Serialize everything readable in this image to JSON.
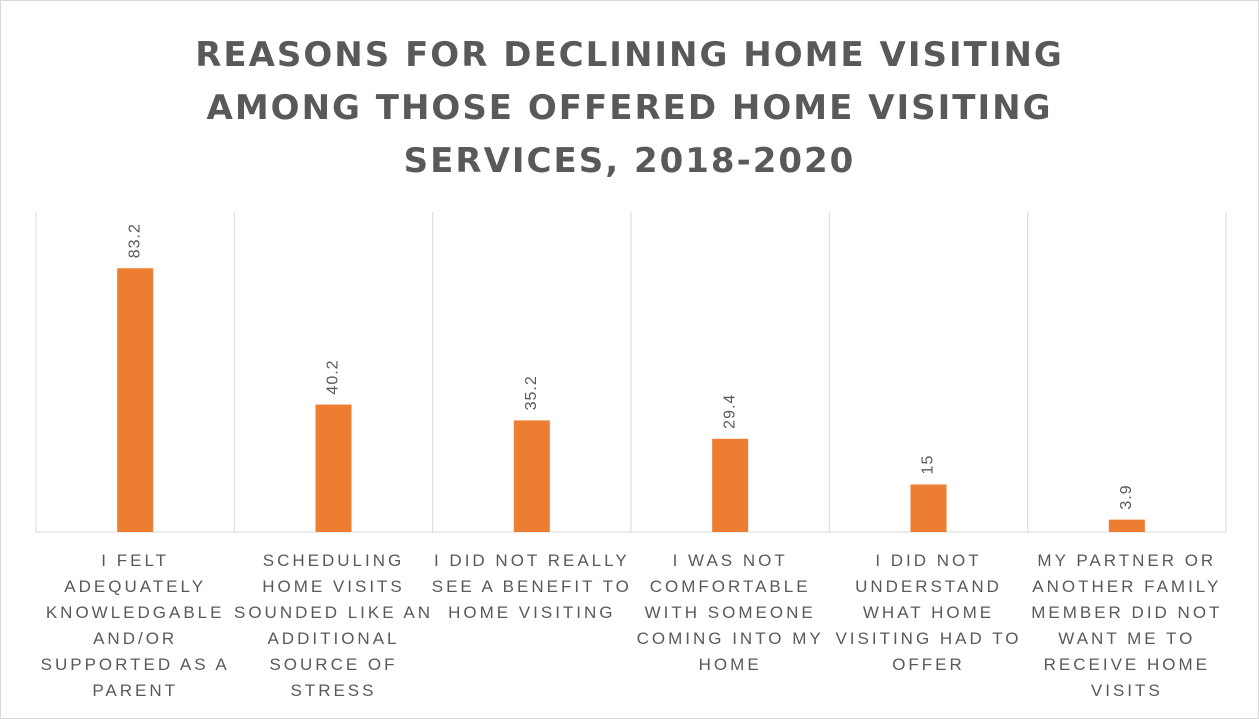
{
  "chart_data": {
    "type": "bar",
    "title": "REASONS FOR DECLINING HOME VISITING AMONG THOSE OFFERED HOME VISITING SERVICES, 2018-2020",
    "categories": [
      "I FELT ADEQUATELY KNOWLEDGABLE AND/OR SUPPORTED AS A PARENT",
      "SCHEDULING HOME VISITS SOUNDED LIKE AN ADDITIONAL SOURCE OF STRESS",
      "I DID NOT REALLY SEE A BENEFIT TO HOME VISITING",
      "I WAS NOT COMFORTABLE WITH SOMEONE COMING INTO MY HOME",
      "I DID NOT UNDERSTAND WHAT HOME VISITING HAD TO OFFER",
      "MY PARTNER OR ANOTHER FAMILY MEMBER DID NOT WANT ME TO RECEIVE HOME VISITS"
    ],
    "values": [
      83.2,
      40.2,
      35.2,
      29.4,
      15,
      3.9
    ],
    "color": "#ed7d31",
    "ylim": [
      0,
      100
    ]
  }
}
